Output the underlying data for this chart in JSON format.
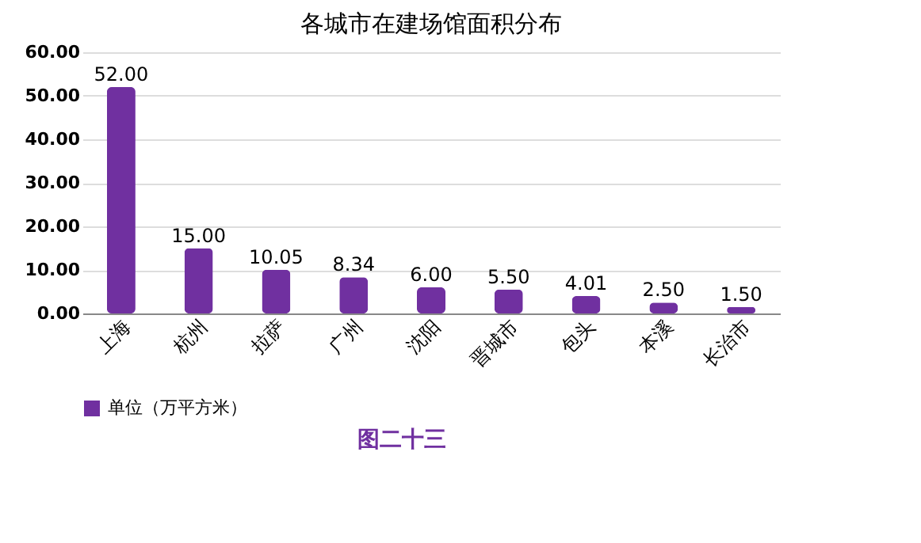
{
  "chart_data": {
    "type": "bar",
    "title": "各城市在建场馆面积分布",
    "categories": [
      "上海",
      "杭州",
      "拉萨",
      "广州",
      "沈阳",
      "晋城市",
      "包头",
      "本溪",
      "长治市"
    ],
    "series": [
      {
        "name": "单位（万平方米）",
        "color": "#7030a0",
        "values": [
          52.0,
          15.0,
          10.05,
          8.34,
          6.0,
          5.5,
          4.01,
          2.5,
          1.5
        ],
        "value_labels": [
          "52.00",
          "15.00",
          "10.05",
          "8.34",
          "6.00",
          "5.50",
          "4.01",
          "2.50",
          "1.50"
        ]
      }
    ],
    "ylim": [
      0,
      60
    ],
    "yticks": [
      {
        "value": 0,
        "label": "0.00"
      },
      {
        "value": 10,
        "label": "10.00"
      },
      {
        "value": 20,
        "label": "20.00"
      },
      {
        "value": 30,
        "label": "30.00"
      },
      {
        "value": 40,
        "label": "40.00"
      },
      {
        "value": 50,
        "label": "50.00"
      },
      {
        "value": 60,
        "label": "60.00"
      }
    ],
    "grid": "y",
    "legend": "bottom",
    "annotations": [
      "图二十三"
    ]
  }
}
